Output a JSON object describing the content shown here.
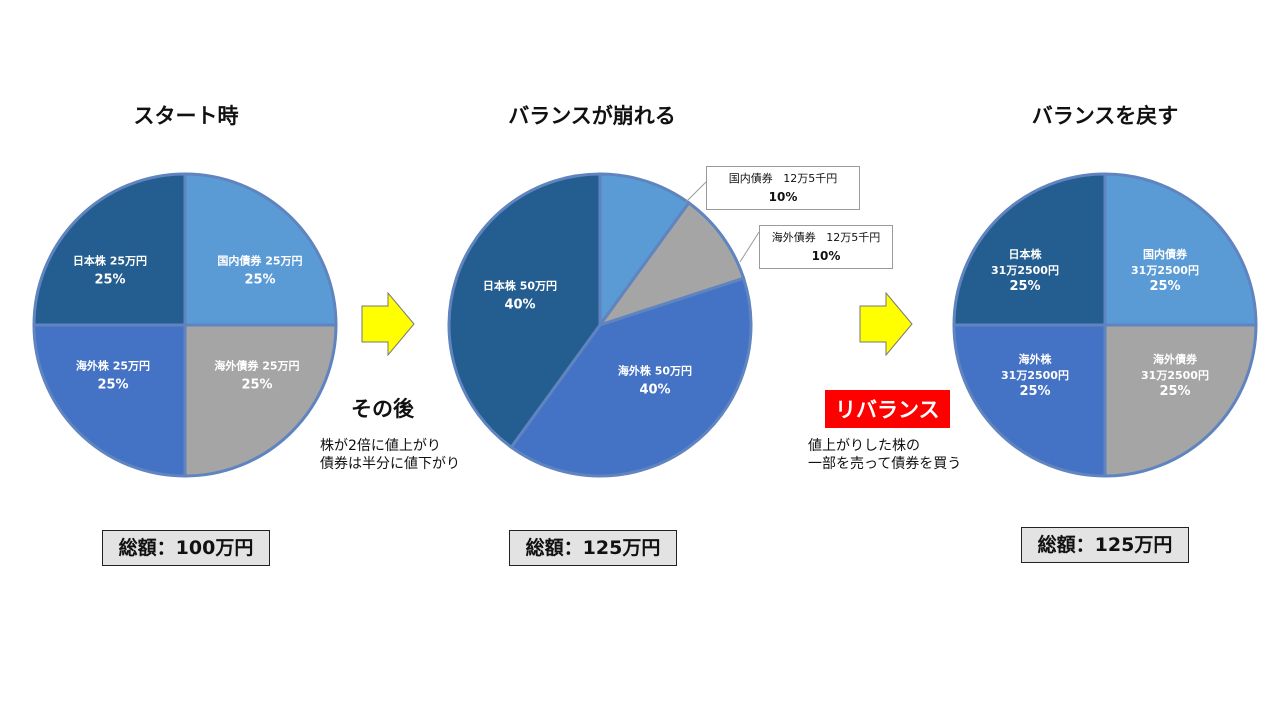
{
  "panels": [
    {
      "title": "スタート時",
      "total": "総額：100万円",
      "slices": [
        {
          "name": "日本株",
          "amount": "25万円",
          "pct": "25%",
          "value": 25,
          "color": "#245d8f"
        },
        {
          "name": "国内債券",
          "amount": "25万円",
          "pct": "25%",
          "value": 25,
          "color": "#5b9bd5"
        },
        {
          "name": "海外債券",
          "amount": "25万円",
          "pct": "25%",
          "value": 25,
          "color": "#a5a5a5"
        },
        {
          "name": "海外株",
          "amount": "25万円",
          "pct": "25%",
          "value": 25,
          "color": "#4472c4"
        }
      ]
    },
    {
      "title": "バランスが崩れる",
      "total": "総額：125万円",
      "slices": [
        {
          "name": "日本株",
          "amount": "50万円",
          "pct": "40%",
          "value": 40,
          "color": "#245d8f"
        },
        {
          "name": "国内債券",
          "amount": "12万5千円",
          "pct": "10%",
          "value": 10,
          "color": "#5b9bd5"
        },
        {
          "name": "海外債券",
          "amount": "12万5千円",
          "pct": "10%",
          "value": 10,
          "color": "#a5a5a5"
        },
        {
          "name": "海外株",
          "amount": "50万円",
          "pct": "40%",
          "value": 40,
          "color": "#4472c4"
        }
      ]
    },
    {
      "title": "バランスを戻す",
      "total": "総額：125万円",
      "slices": [
        {
          "name": "日本株",
          "amount": "31万2500円",
          "pct": "25%",
          "value": 25,
          "color": "#245d8f"
        },
        {
          "name": "国内債券",
          "amount": "31万2500円",
          "pct": "25%",
          "value": 25,
          "color": "#5b9bd5"
        },
        {
          "name": "海外債券",
          "amount": "31万2500円",
          "pct": "25%",
          "value": 25,
          "color": "#a5a5a5"
        },
        {
          "name": "海外株",
          "amount": "31万2500円",
          "pct": "25%",
          "value": 25,
          "color": "#4472c4"
        }
      ]
    }
  ],
  "middle": {
    "heading": "その後",
    "note_line1": "株が2倍に値上がり",
    "note_line2": "債券は半分に値下がり"
  },
  "rebalance": {
    "badge": "リバランス",
    "note_line1": "値上がりした株の",
    "note_line2": "一部を売って債券を買う"
  },
  "arrow_color": "#ffff00",
  "chart_data": [
    {
      "type": "pie",
      "title": "スタート時",
      "categories": [
        "日本株",
        "国内債券",
        "海外債券",
        "海外株"
      ],
      "values": [
        25,
        25,
        25,
        25
      ]
    },
    {
      "type": "pie",
      "title": "バランスが崩れる",
      "categories": [
        "日本株",
        "国内債券",
        "海外債券",
        "海外株"
      ],
      "values": [
        40,
        10,
        10,
        40
      ]
    },
    {
      "type": "pie",
      "title": "バランスを戻す",
      "categories": [
        "日本株",
        "国内債券",
        "海外債券",
        "海外株"
      ],
      "values": [
        25,
        25,
        25,
        25
      ]
    }
  ]
}
